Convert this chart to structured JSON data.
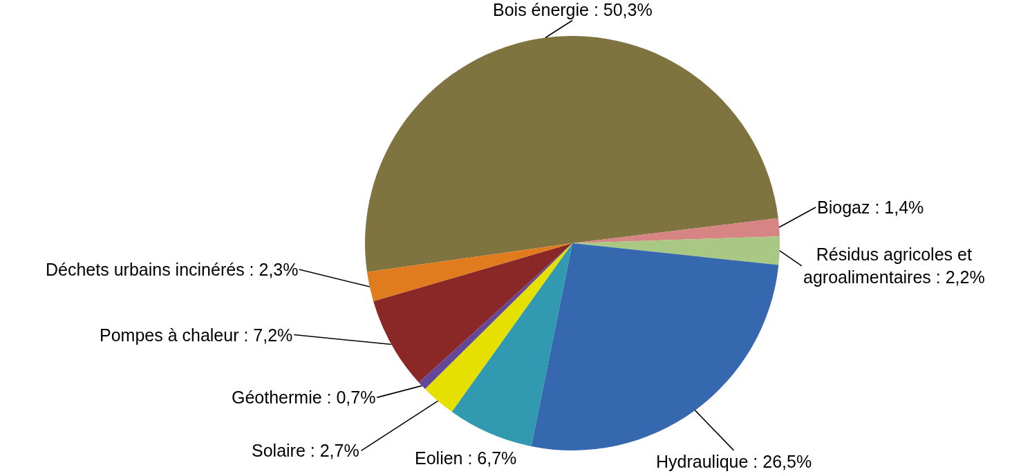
{
  "chart_data": {
    "type": "pie",
    "categories": [
      "Bois énergie",
      "Biogaz",
      "Résidus agricoles et agroalimentaires",
      "Hydraulique",
      "Eolien",
      "Solaire",
      "Géothermie",
      "Pompes à chaleur",
      "Déchets urbains incinérés"
    ],
    "values": [
      50.3,
      1.4,
      2.2,
      26.5,
      6.7,
      2.7,
      0.7,
      7.2,
      2.3
    ],
    "colors": [
      "#7f7440",
      "#d68484",
      "#a9c883",
      "#3568ae",
      "#3199b0",
      "#e6e000",
      "#65479a",
      "#8a2828",
      "#e07b1e"
    ],
    "value_labels": [
      "50,3%",
      "1,4%",
      "2,2%",
      "26,5%",
      "6,7%",
      "2,7%",
      "0,7%",
      "7,2%",
      "2,3%"
    ]
  }
}
